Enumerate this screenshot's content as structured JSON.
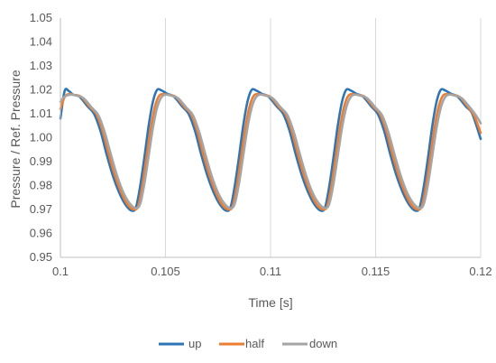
{
  "chart_data": {
    "type": "line",
    "title": "",
    "xlabel": "Time [s]",
    "ylabel": "Pressure / Ref. Pressure",
    "xlim": [
      0.1,
      0.12
    ],
    "ylim": [
      0.95,
      1.05
    ],
    "x_ticks": [
      "0.1",
      "0.105",
      "0.11",
      "0.115",
      "0.12"
    ],
    "y_ticks": [
      "0.95",
      "0.96",
      "0.97",
      "0.98",
      "0.99",
      "1.00",
      "1.01",
      "1.02",
      "1.03",
      "1.04",
      "1.05"
    ],
    "grid": "vertical",
    "legend_position": "bottom",
    "period": 0.0045,
    "series": [
      {
        "name": "up",
        "color": "#2E75B6",
        "points": [
          [
            0.1,
            1.008
          ],
          [
            0.1002,
            1.0195
          ],
          [
            0.1004,
            1.0195
          ],
          [
            0.1006,
            1.018
          ],
          [
            0.1009,
            1.0172
          ],
          [
            0.1013,
            1.013
          ],
          [
            0.1016,
            1.01
          ],
          [
            0.1019,
            1.003
          ],
          [
            0.1022,
            0.993
          ],
          [
            0.1025,
            0.984
          ],
          [
            0.1028,
            0.977
          ],
          [
            0.1031,
            0.972
          ],
          [
            0.1034,
            0.9695
          ],
          [
            0.1036,
            0.971
          ],
          [
            0.1038,
            0.98
          ],
          [
            0.104,
            0.992
          ],
          [
            0.1042,
            1.005
          ],
          [
            0.1044,
            1.015
          ],
          [
            0.1046,
            1.02
          ],
          [
            0.1048,
            1.0198
          ],
          [
            0.1051,
            1.0183
          ],
          [
            0.1054,
            1.0172
          ],
          [
            0.1058,
            1.013
          ],
          [
            0.1061,
            1.01
          ],
          [
            0.1064,
            1.003
          ],
          [
            0.1067,
            0.993
          ],
          [
            0.107,
            0.984
          ],
          [
            0.1073,
            0.977
          ],
          [
            0.1076,
            0.972
          ],
          [
            0.1079,
            0.9695
          ],
          [
            0.1081,
            0.971
          ],
          [
            0.1083,
            0.98
          ],
          [
            0.1085,
            0.992
          ],
          [
            0.1087,
            1.005
          ],
          [
            0.1089,
            1.015
          ],
          [
            0.1091,
            1.02
          ],
          [
            0.1093,
            1.0198
          ],
          [
            0.1096,
            1.0183
          ],
          [
            0.1099,
            1.0172
          ],
          [
            0.1103,
            1.013
          ],
          [
            0.1106,
            1.01
          ],
          [
            0.1109,
            1.003
          ],
          [
            0.1112,
            0.993
          ],
          [
            0.1115,
            0.984
          ],
          [
            0.1118,
            0.977
          ],
          [
            0.1121,
            0.972
          ],
          [
            0.1124,
            0.9695
          ],
          [
            0.1126,
            0.971
          ],
          [
            0.1128,
            0.98
          ],
          [
            0.113,
            0.992
          ],
          [
            0.1132,
            1.005
          ],
          [
            0.1134,
            1.015
          ],
          [
            0.1136,
            1.02
          ],
          [
            0.1138,
            1.0198
          ],
          [
            0.1141,
            1.0183
          ],
          [
            0.1144,
            1.0172
          ],
          [
            0.1148,
            1.013
          ],
          [
            0.1151,
            1.01
          ],
          [
            0.1154,
            1.003
          ],
          [
            0.1157,
            0.993
          ],
          [
            0.116,
            0.984
          ],
          [
            0.1163,
            0.977
          ],
          [
            0.1166,
            0.972
          ],
          [
            0.1169,
            0.9695
          ],
          [
            0.1171,
            0.971
          ],
          [
            0.1173,
            0.98
          ],
          [
            0.1175,
            0.992
          ],
          [
            0.1177,
            1.005
          ],
          [
            0.1179,
            1.015
          ],
          [
            0.1181,
            1.02
          ],
          [
            0.1183,
            1.0198
          ],
          [
            0.1186,
            1.0183
          ],
          [
            0.1189,
            1.0172
          ],
          [
            0.1193,
            1.013
          ],
          [
            0.1196,
            1.01
          ],
          [
            0.12,
            0.9995
          ]
        ]
      },
      {
        "name": "half",
        "color": "#ED7D31",
        "points": [
          [
            0.1,
            1.012
          ],
          [
            0.1002,
            1.017
          ],
          [
            0.1004,
            1.0182
          ],
          [
            0.1007,
            1.0178
          ],
          [
            0.101,
            1.017
          ],
          [
            0.1014,
            1.0128
          ],
          [
            0.1017,
            1.01
          ],
          [
            0.102,
            1.003
          ],
          [
            0.1023,
            0.993
          ],
          [
            0.1026,
            0.984
          ],
          [
            0.1029,
            0.977
          ],
          [
            0.1032,
            0.972
          ],
          [
            0.1035,
            0.97
          ],
          [
            0.1037,
            0.9715
          ],
          [
            0.1039,
            0.98
          ],
          [
            0.1041,
            0.992
          ],
          [
            0.1043,
            1.004
          ],
          [
            0.1045,
            1.013
          ],
          [
            0.1047,
            1.0175
          ],
          [
            0.1049,
            1.0182
          ],
          [
            0.1052,
            1.0178
          ],
          [
            0.1055,
            1.017
          ],
          [
            0.1059,
            1.0128
          ],
          [
            0.1062,
            1.01
          ],
          [
            0.1065,
            1.003
          ],
          [
            0.1068,
            0.993
          ],
          [
            0.1071,
            0.984
          ],
          [
            0.1074,
            0.977
          ],
          [
            0.1077,
            0.972
          ],
          [
            0.108,
            0.97
          ],
          [
            0.1082,
            0.9715
          ],
          [
            0.1084,
            0.98
          ],
          [
            0.1086,
            0.992
          ],
          [
            0.1088,
            1.004
          ],
          [
            0.109,
            1.013
          ],
          [
            0.1092,
            1.0175
          ],
          [
            0.1094,
            1.0182
          ],
          [
            0.1097,
            1.0178
          ],
          [
            0.11,
            1.017
          ],
          [
            0.1104,
            1.0128
          ],
          [
            0.1107,
            1.01
          ],
          [
            0.111,
            1.003
          ],
          [
            0.1113,
            0.993
          ],
          [
            0.1116,
            0.984
          ],
          [
            0.1119,
            0.977
          ],
          [
            0.1122,
            0.972
          ],
          [
            0.1125,
            0.97
          ],
          [
            0.1127,
            0.9715
          ],
          [
            0.1129,
            0.98
          ],
          [
            0.1131,
            0.992
          ],
          [
            0.1133,
            1.004
          ],
          [
            0.1135,
            1.013
          ],
          [
            0.1137,
            1.0175
          ],
          [
            0.1139,
            1.0182
          ],
          [
            0.1142,
            1.0178
          ],
          [
            0.1145,
            1.017
          ],
          [
            0.1149,
            1.0128
          ],
          [
            0.1152,
            1.01
          ],
          [
            0.1155,
            1.003
          ],
          [
            0.1158,
            0.993
          ],
          [
            0.1161,
            0.984
          ],
          [
            0.1164,
            0.977
          ],
          [
            0.1167,
            0.972
          ],
          [
            0.117,
            0.97
          ],
          [
            0.1172,
            0.9715
          ],
          [
            0.1174,
            0.98
          ],
          [
            0.1176,
            0.992
          ],
          [
            0.1178,
            1.004
          ],
          [
            0.118,
            1.013
          ],
          [
            0.1182,
            1.0175
          ],
          [
            0.1184,
            1.0182
          ],
          [
            0.1187,
            1.0178
          ],
          [
            0.119,
            1.017
          ],
          [
            0.1194,
            1.0128
          ],
          [
            0.1197,
            1.009
          ],
          [
            0.12,
            1.002
          ]
        ]
      },
      {
        "name": "down",
        "color": "#A5A5A5",
        "points": [
          [
            0.1,
            1.015
          ],
          [
            0.1002,
            1.0172
          ],
          [
            0.1005,
            1.018
          ],
          [
            0.1008,
            1.0175
          ],
          [
            0.1011,
            1.0165
          ],
          [
            0.1015,
            1.0125
          ],
          [
            0.1018,
            1.0095
          ],
          [
            0.1021,
            1.0025
          ],
          [
            0.1024,
            0.993
          ],
          [
            0.1027,
            0.984
          ],
          [
            0.103,
            0.977
          ],
          [
            0.1033,
            0.9725
          ],
          [
            0.1036,
            0.9705
          ],
          [
            0.1038,
            0.9725
          ],
          [
            0.104,
            0.981
          ],
          [
            0.1042,
            0.9925
          ],
          [
            0.1044,
            1.004
          ],
          [
            0.1046,
            1.0125
          ],
          [
            0.1048,
            1.0168
          ],
          [
            0.105,
            1.018
          ],
          [
            0.1053,
            1.0175
          ],
          [
            0.1056,
            1.0165
          ],
          [
            0.106,
            1.0125
          ],
          [
            0.1063,
            1.0095
          ],
          [
            0.1066,
            1.0025
          ],
          [
            0.1069,
            0.993
          ],
          [
            0.1072,
            0.984
          ],
          [
            0.1075,
            0.977
          ],
          [
            0.1078,
            0.9725
          ],
          [
            0.1081,
            0.9705
          ],
          [
            0.1083,
            0.9725
          ],
          [
            0.1085,
            0.981
          ],
          [
            0.1087,
            0.9925
          ],
          [
            0.1089,
            1.004
          ],
          [
            0.1091,
            1.0125
          ],
          [
            0.1093,
            1.0168
          ],
          [
            0.1095,
            1.018
          ],
          [
            0.1098,
            1.0175
          ],
          [
            0.1101,
            1.0165
          ],
          [
            0.1105,
            1.0125
          ],
          [
            0.1108,
            1.0095
          ],
          [
            0.1111,
            1.0025
          ],
          [
            0.1114,
            0.993
          ],
          [
            0.1117,
            0.984
          ],
          [
            0.112,
            0.977
          ],
          [
            0.1123,
            0.9725
          ],
          [
            0.1126,
            0.9705
          ],
          [
            0.1128,
            0.9725
          ],
          [
            0.113,
            0.981
          ],
          [
            0.1132,
            0.9925
          ],
          [
            0.1134,
            1.004
          ],
          [
            0.1136,
            1.0125
          ],
          [
            0.1138,
            1.0168
          ],
          [
            0.114,
            1.018
          ],
          [
            0.1143,
            1.0175
          ],
          [
            0.1146,
            1.0165
          ],
          [
            0.115,
            1.0125
          ],
          [
            0.1153,
            1.0095
          ],
          [
            0.1156,
            1.0025
          ],
          [
            0.1159,
            0.993
          ],
          [
            0.1162,
            0.984
          ],
          [
            0.1165,
            0.977
          ],
          [
            0.1168,
            0.9725
          ],
          [
            0.1171,
            0.9705
          ],
          [
            0.1173,
            0.9725
          ],
          [
            0.1175,
            0.981
          ],
          [
            0.1177,
            0.9925
          ],
          [
            0.1179,
            1.004
          ],
          [
            0.1181,
            1.0125
          ],
          [
            0.1183,
            1.0168
          ],
          [
            0.1185,
            1.018
          ],
          [
            0.1188,
            1.0175
          ],
          [
            0.1191,
            1.0165
          ],
          [
            0.1195,
            1.0125
          ],
          [
            0.1198,
            1.009
          ],
          [
            0.12,
            1.006
          ]
        ]
      }
    ]
  }
}
